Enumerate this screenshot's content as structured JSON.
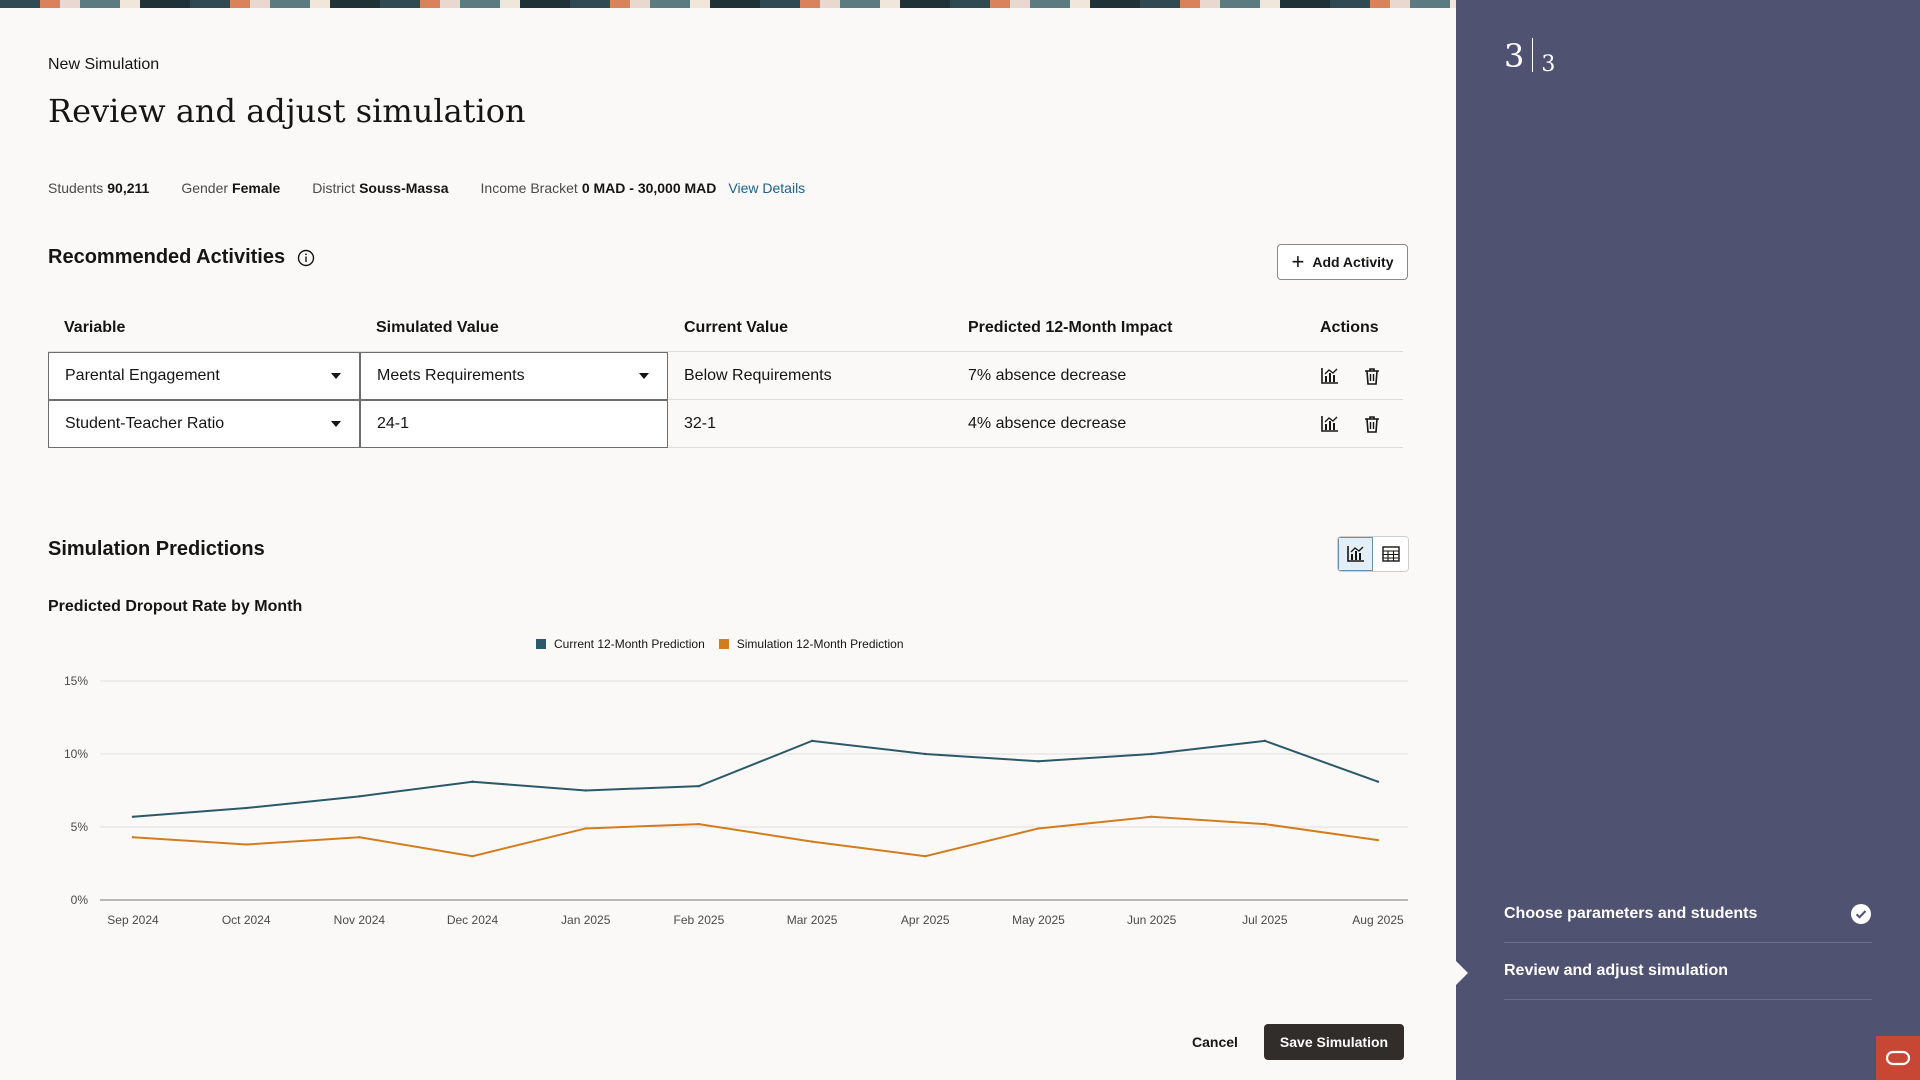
{
  "header": {
    "breadcrumb": "New Simulation",
    "title": "Review and adjust simulation"
  },
  "meta": [
    {
      "label": "Students",
      "value": "90,211"
    },
    {
      "label": "Gender",
      "value": "Female"
    },
    {
      "label": "District",
      "value": "Souss-Massa"
    },
    {
      "label": "Income Bracket",
      "value": "0 MAD - 30,000 MAD"
    }
  ],
  "meta_link": "View Details",
  "activities": {
    "title": "Recommended Activities",
    "add_label": "Add Activity",
    "columns": [
      "Variable",
      "Simulated Value",
      "Current Value",
      "Predicted 12-Month Impact",
      "Actions"
    ],
    "rows": [
      {
        "variable": "Parental Engagement",
        "simulated": "Meets Requirements",
        "current": "Below Requirements",
        "impact": "7% absence decrease"
      },
      {
        "variable": "Student-Teacher Ratio",
        "simulated": "24-1",
        "current": "32-1",
        "impact": "4% absence decrease"
      }
    ]
  },
  "predictions": {
    "title": "Simulation Predictions",
    "chart_title": "Predicted Dropout Rate by Month"
  },
  "chart_data": {
    "type": "line",
    "title": "Predicted Dropout Rate by Month",
    "categories": [
      "Sep 2024",
      "Oct 2024",
      "Nov 2024",
      "Dec 2024",
      "Jan 2025",
      "Feb 2025",
      "Mar 2025",
      "Apr 2025",
      "May 2025",
      "Jun 2025",
      "Jul 2025",
      "Aug 2025"
    ],
    "series": [
      {
        "name": "Current 12-Month Prediction",
        "color": "#2c5967",
        "values": [
          5.7,
          6.3,
          7.1,
          8.1,
          7.5,
          7.8,
          10.9,
          10.0,
          9.5,
          10.0,
          10.9,
          8.1
        ]
      },
      {
        "name": "Simulation 12-Month Prediction",
        "color": "#d17d1f",
        "values": [
          4.3,
          3.8,
          4.3,
          3.0,
          4.9,
          5.2,
          4.0,
          3.0,
          4.9,
          5.7,
          5.2,
          4.1
        ]
      }
    ],
    "ylim": [
      0,
      15
    ],
    "yticks": [
      "0%",
      "5%",
      "10%",
      "15%"
    ],
    "grid": true,
    "legend": "top-center"
  },
  "footer": {
    "cancel_label": "Cancel",
    "save_label": "Save Simulation"
  },
  "sidebar": {
    "step_current": "3",
    "step_total": "3",
    "steps": [
      {
        "label": "Choose parameters and students",
        "done": true
      },
      {
        "label": "Review and adjust simulation",
        "done": false
      }
    ]
  }
}
